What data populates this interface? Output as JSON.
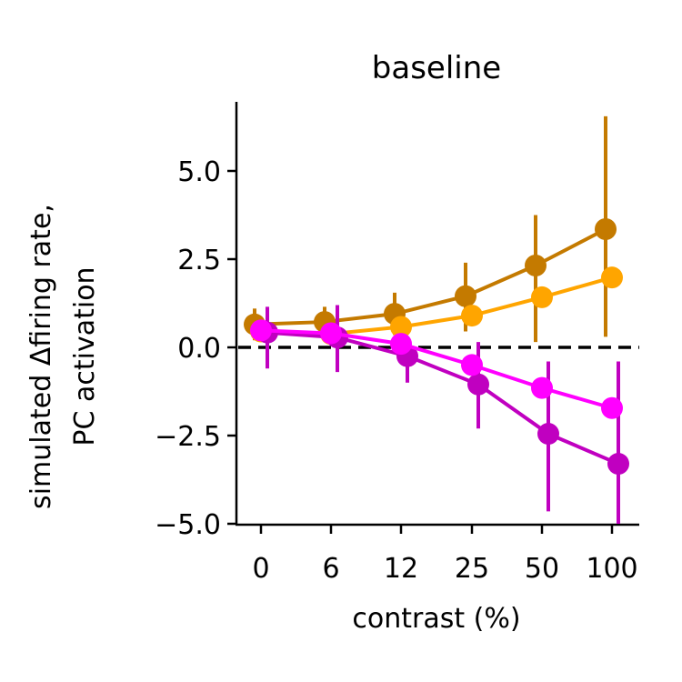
{
  "chart_data": {
    "type": "line",
    "title": "baseline",
    "xlabel": "contrast (%)",
    "ylabel_lines": [
      "simulated Δfiring rate,",
      "PC activation"
    ],
    "categories": [
      "0",
      "6",
      "12",
      "25",
      "50",
      "100"
    ],
    "ylim": [
      -5.0,
      7.0
    ],
    "yticks": [
      "−5.0",
      "−2.5",
      "0.0",
      "2.5",
      "5.0"
    ],
    "ytick_values": [
      -5.0,
      -2.5,
      0.0,
      2.5,
      5.0
    ],
    "reference_line": {
      "y": 0,
      "style": "dashed",
      "color": "#000000"
    },
    "grid": false,
    "series": [
      {
        "color": "#c47a00",
        "values": [
          0.65,
          0.72,
          0.95,
          1.45,
          2.32,
          3.35
        ],
        "err_low": [
          0.2,
          0.2,
          0.35,
          0.45,
          0.15,
          0.3
        ],
        "err_high": [
          1.1,
          1.15,
          1.55,
          2.4,
          3.75,
          6.55
        ]
      },
      {
        "color": "#ffa500",
        "values": [
          0.45,
          0.38,
          0.58,
          0.9,
          1.42,
          1.98
        ],
        "err_low": null,
        "err_high": null
      },
      {
        "color": "#ff00ff",
        "values": [
          0.48,
          0.4,
          0.1,
          -0.5,
          -1.15,
          -1.72
        ],
        "err_low": null,
        "err_high": null
      },
      {
        "color": "#c000c0",
        "values": [
          0.42,
          0.28,
          -0.25,
          -1.05,
          -2.45,
          -3.3
        ],
        "err_low": [
          -0.6,
          -0.7,
          -1.0,
          -2.3,
          -4.65,
          -5.0
        ],
        "err_high": [
          1.15,
          1.2,
          0.3,
          0.15,
          -0.4,
          -0.4
        ]
      }
    ]
  }
}
